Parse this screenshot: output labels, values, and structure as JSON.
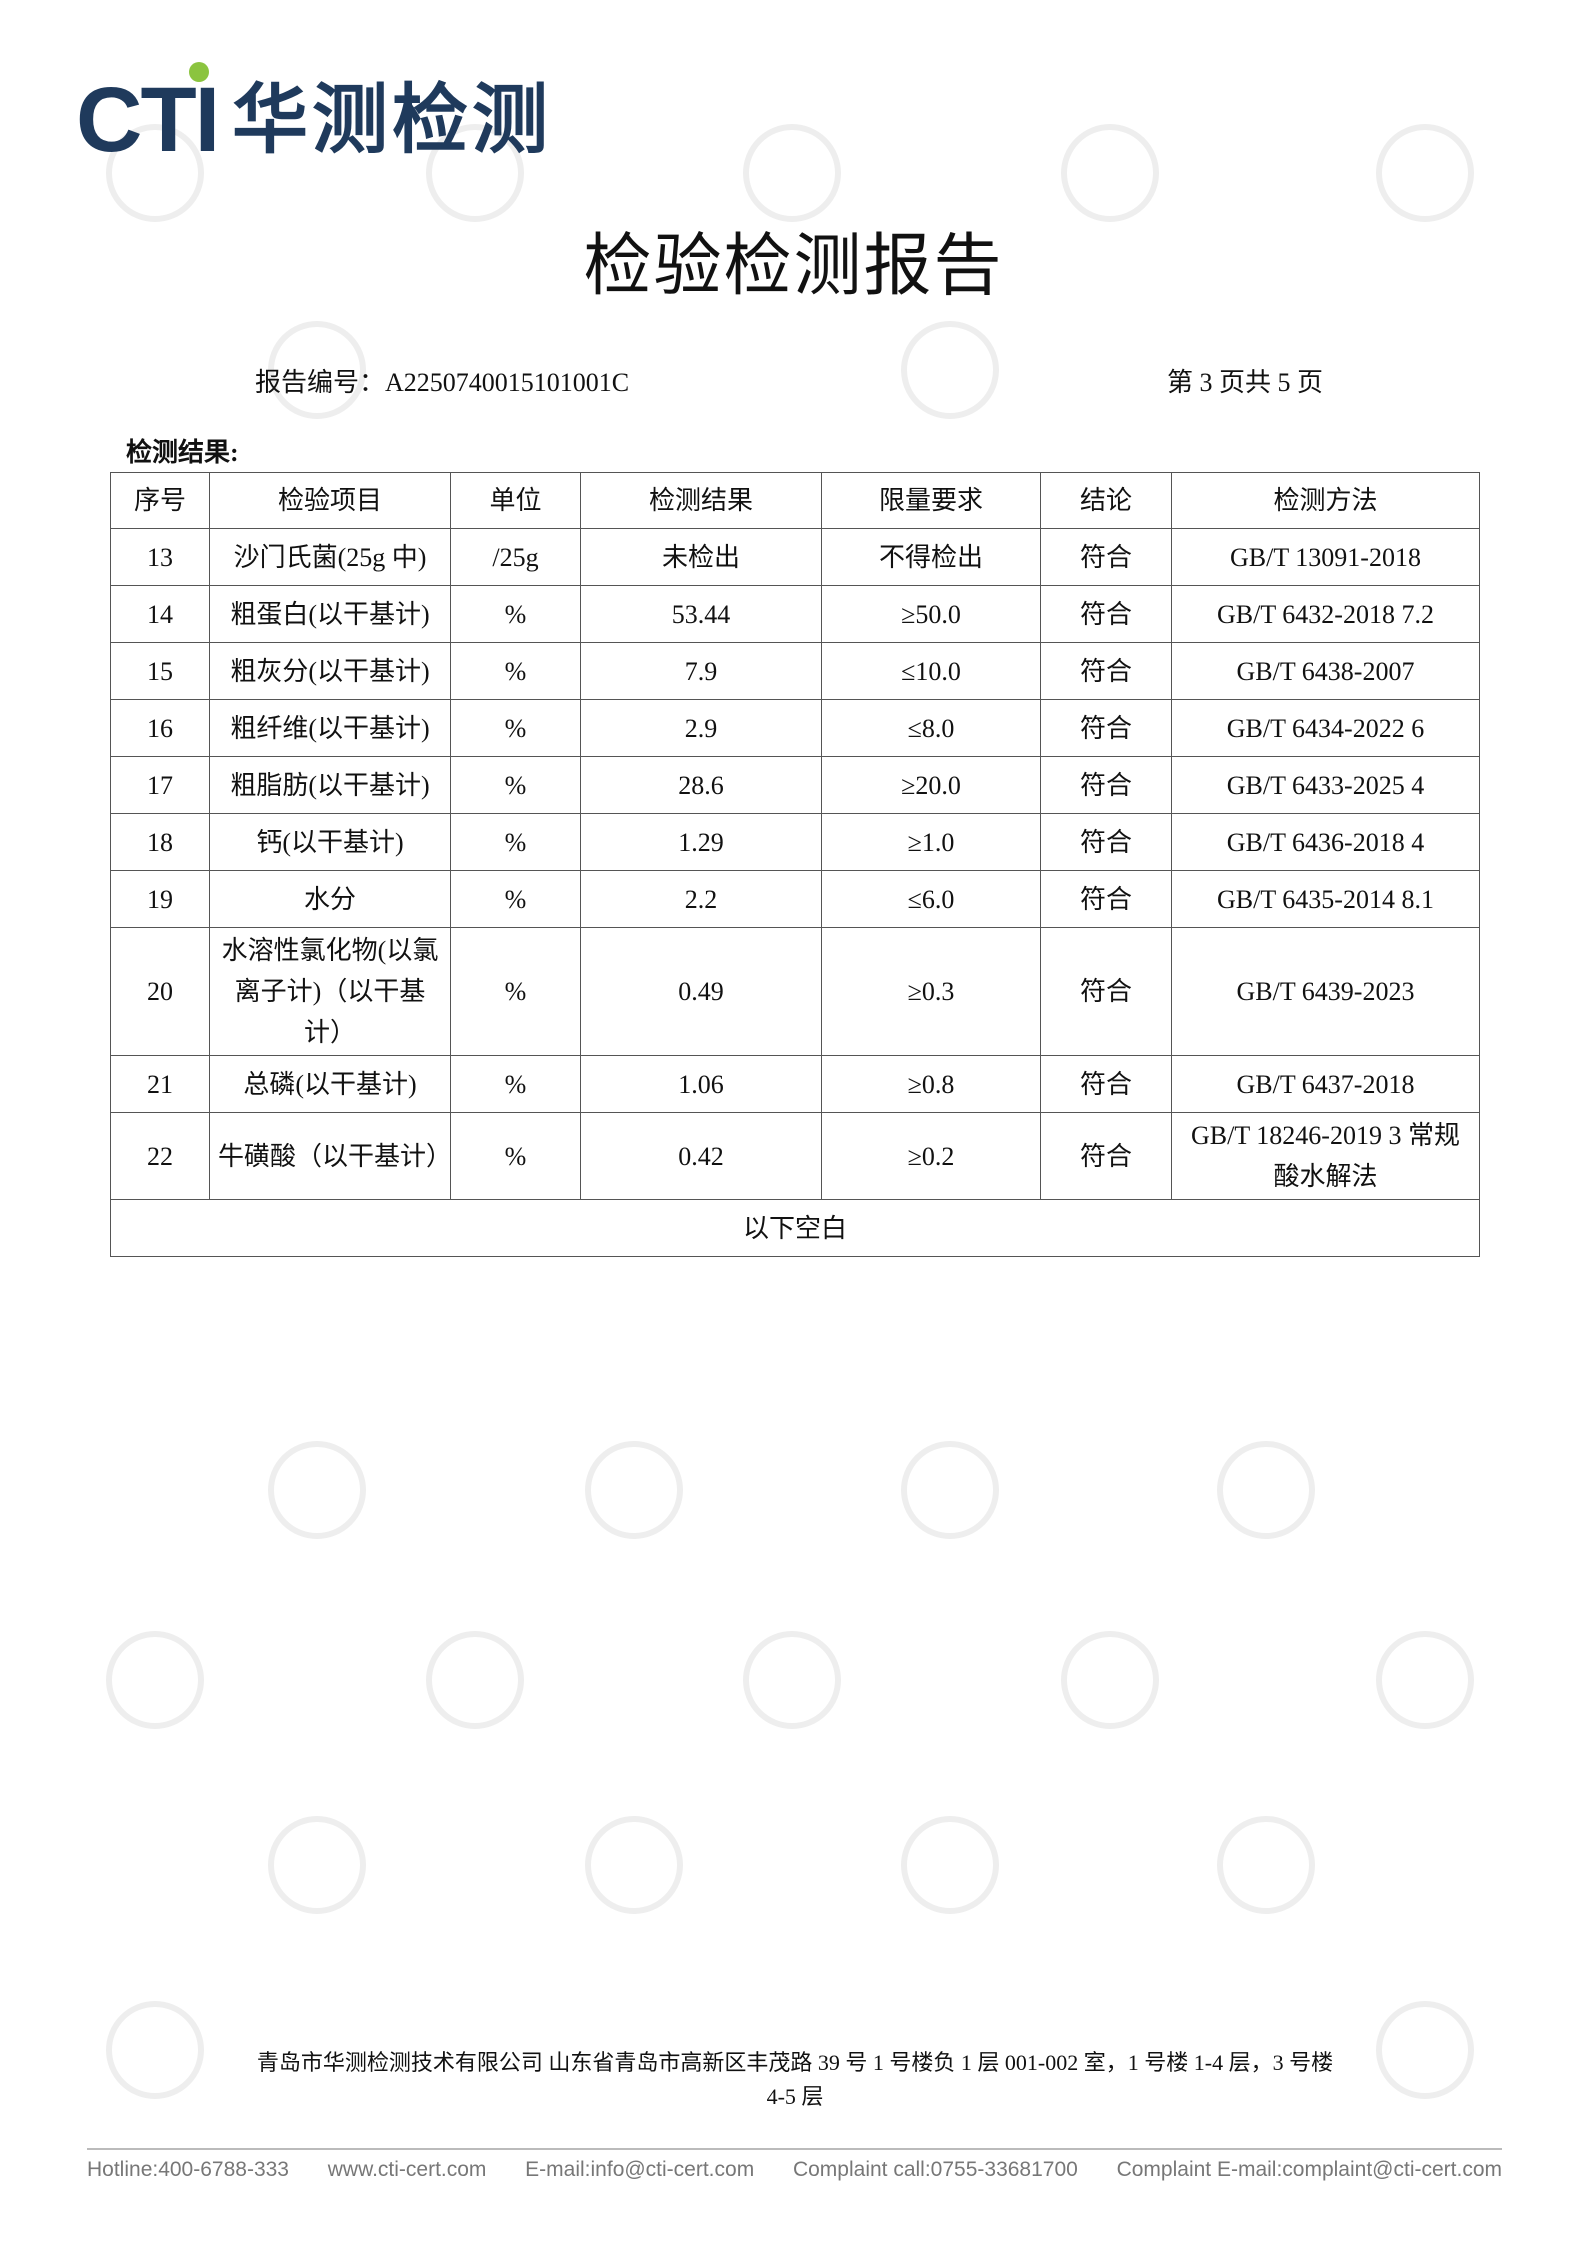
{
  "logo": {
    "brand": "CTI",
    "name": "华测检测"
  },
  "title": "检验检测报告",
  "report_no": "报告编号：A2250740015101001C",
  "page_info": "第 3 页共 5 页",
  "section": "检测结果:",
  "table": {
    "header": [
      "序号",
      "检验项目",
      "单位",
      "检测结果",
      "限量要求",
      "结论",
      "检测方法"
    ],
    "rows": [
      [
        "13",
        "沙门氏菌(25g 中)",
        "/25g",
        "未检出",
        "不得检出",
        "符合",
        "GB/T 13091-2018"
      ],
      [
        "14",
        "粗蛋白(以干基计)",
        "%",
        "53.44",
        "≥50.0",
        "符合",
        "GB/T 6432-2018 7.2"
      ],
      [
        "15",
        "粗灰分(以干基计)",
        "%",
        "7.9",
        "≤10.0",
        "符合",
        "GB/T 6438-2007"
      ],
      [
        "16",
        "粗纤维(以干基计)",
        "%",
        "2.9",
        "≤8.0",
        "符合",
        "GB/T 6434-2022 6"
      ],
      [
        "17",
        "粗脂肪(以干基计)",
        "%",
        "28.6",
        "≥20.0",
        "符合",
        "GB/T 6433-2025 4"
      ],
      [
        "18",
        "钙(以干基计)",
        "%",
        "1.29",
        "≥1.0",
        "符合",
        "GB/T 6436-2018 4"
      ],
      [
        "19",
        "水分",
        "%",
        "2.2",
        "≤6.0",
        "符合",
        "GB/T 6435-2014 8.1"
      ],
      [
        "20",
        "水溶性氯化物(以氯离子计)（以干基计）",
        "%",
        "0.49",
        "≥0.3",
        "符合",
        "GB/T 6439-2023"
      ],
      [
        "21",
        "总磷(以干基计)",
        "%",
        "1.06",
        "≥0.8",
        "符合",
        "GB/T 6437-2018"
      ],
      [
        "22",
        "牛磺酸（以干基计）",
        "%",
        "0.42",
        "≥0.2",
        "符合",
        "GB/T 18246-2019 3 常规酸水解法"
      ]
    ],
    "note": "以下空白"
  },
  "footer": {
    "address": "青岛市华测检测技术有限公司 山东省青岛市高新区丰茂路 39 号 1 号楼负 1 层 001-002 室，1 号楼 1-4 层，3 号楼 4-5 层",
    "contacts": [
      "Hotline:400-6788-333",
      "www.cti-cert.com",
      "E-mail:info@cti-cert.com",
      "Complaint call:0755-33681700",
      "Complaint E-mail:complaint@cti-cert.com"
    ]
  }
}
